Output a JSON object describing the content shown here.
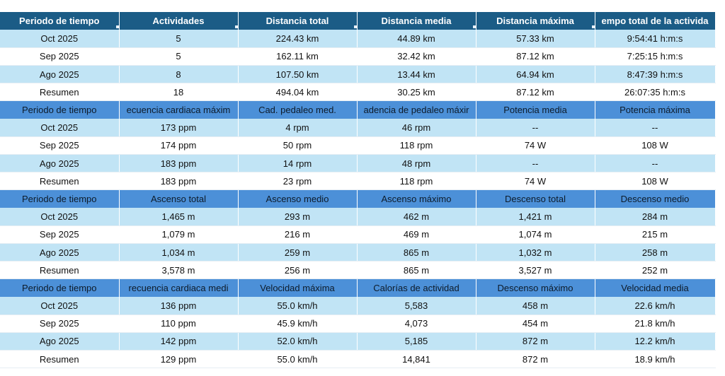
{
  "blocks": [
    {
      "headers": [
        "Periodo de tiempo",
        "Actividades",
        "Distancia total",
        "Distancia media",
        "Distancia máxima",
        "empo total de la activida"
      ],
      "rows": [
        [
          "Oct 2025",
          "5",
          "224.43 km",
          "44.89 km",
          "57.33 km",
          "9:54:41 h:m:s"
        ],
        [
          "Sep 2025",
          "5",
          "162.11 km",
          "32.42 km",
          "87.12 km",
          "7:25:15 h:m:s"
        ],
        [
          "Ago 2025",
          "8",
          "107.50 km",
          "13.44 km",
          "64.94 km",
          "8:47:39 h:m:s"
        ],
        [
          "Resumen",
          "18",
          "494.04 km",
          "30.25 km",
          "87.12 km",
          "26:07:35 h:m:s"
        ]
      ]
    },
    {
      "headers": [
        "Periodo de tiempo",
        "ecuencia cardiaca máxim",
        "Cad. pedaleo med.",
        "adencia de pedaleo máxir",
        "Potencia media",
        "Potencia máxima"
      ],
      "rows": [
        [
          "Oct 2025",
          "173 ppm",
          "4 rpm",
          "46 rpm",
          "--",
          "--"
        ],
        [
          "Sep 2025",
          "174 ppm",
          "50 rpm",
          "118 rpm",
          "74 W",
          "108 W"
        ],
        [
          "Ago 2025",
          "183 ppm",
          "14 rpm",
          "48 rpm",
          "--",
          "--"
        ],
        [
          "Resumen",
          "183 ppm",
          "23 rpm",
          "118 rpm",
          "74 W",
          "108 W"
        ]
      ]
    },
    {
      "headers": [
        "Periodo de tiempo",
        "Ascenso total",
        "Ascenso medio",
        "Ascenso máximo",
        "Descenso total",
        "Descenso medio"
      ],
      "rows": [
        [
          "Oct 2025",
          "1,465 m",
          "293 m",
          "462 m",
          "1,421 m",
          "284 m"
        ],
        [
          "Sep 2025",
          "1,079 m",
          "216 m",
          "469 m",
          "1,074 m",
          "215 m"
        ],
        [
          "Ago 2025",
          "1,034 m",
          "259 m",
          "865 m",
          "1,032 m",
          "258 m"
        ],
        [
          "Resumen",
          "3,578 m",
          "256 m",
          "865 m",
          "3,527 m",
          "252 m"
        ]
      ]
    },
    {
      "headers": [
        "Periodo de tiempo",
        "recuencia cardiaca medi",
        "Velocidad máxima",
        "Calorías de actividad",
        "Descenso máximo",
        "Velocidad media"
      ],
      "rows": [
        [
          "Oct 2025",
          "136 ppm",
          "55.0 km/h",
          "5,583",
          "458 m",
          "22.6 km/h"
        ],
        [
          "Sep 2025",
          "110 ppm",
          "45.9 km/h",
          "4,073",
          "454 m",
          "21.8 km/h"
        ],
        [
          "Ago 2025",
          "142 ppm",
          "52.0 km/h",
          "5,185",
          "872 m",
          "12.2 km/h"
        ],
        [
          "Resumen",
          "129 ppm",
          "55.0 km/h",
          "14,841",
          "872 m",
          "18.9 km/h"
        ]
      ]
    }
  ],
  "colors": {
    "header_dark": "#1b5c86",
    "header_light": "#4c90d8",
    "band_row": "#c1e4f5",
    "plain_row": "#ffffff"
  }
}
